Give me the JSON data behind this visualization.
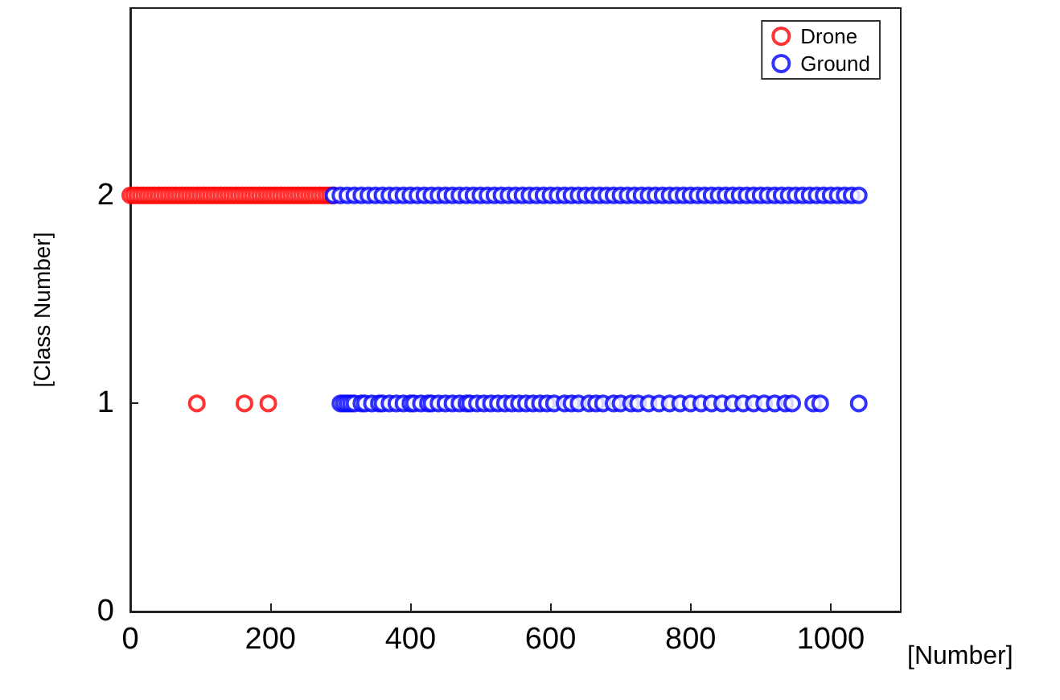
{
  "chart_data": {
    "type": "scatter",
    "xlabel": "[Number]",
    "ylabel": "[Class Number]",
    "xlim": [
      0,
      1100
    ],
    "xticks": [
      0,
      200,
      400,
      600,
      800,
      1000
    ],
    "ylim": [
      0,
      2.9
    ],
    "yticks": [
      0,
      1,
      2
    ],
    "grid": false,
    "legend": "top right",
    "marker": "circle",
    "series": [
      {
        "name": "Drone",
        "color": "#ff0000",
        "x": [
          0,
          5,
          10,
          15,
          20,
          25,
          30,
          35,
          40,
          45,
          50,
          55,
          60,
          65,
          70,
          75,
          80,
          85,
          90,
          95,
          100,
          105,
          110,
          115,
          120,
          125,
          130,
          135,
          140,
          145,
          150,
          155,
          160,
          165,
          170,
          175,
          180,
          185,
          190,
          195,
          200,
          205,
          210,
          215,
          220,
          225,
          230,
          235,
          240,
          245,
          250,
          255,
          260,
          265,
          270,
          275,
          280,
          285,
          290,
          95,
          163,
          197
        ],
        "values": [
          2,
          2,
          2,
          2,
          2,
          2,
          2,
          2,
          2,
          2,
          2,
          2,
          2,
          2,
          2,
          2,
          2,
          2,
          2,
          2,
          2,
          2,
          2,
          2,
          2,
          2,
          2,
          2,
          2,
          2,
          2,
          2,
          2,
          2,
          2,
          2,
          2,
          2,
          2,
          2,
          2,
          2,
          2,
          2,
          2,
          2,
          2,
          2,
          2,
          2,
          2,
          2,
          2,
          2,
          2,
          2,
          2,
          2,
          2,
          1,
          1,
          1
        ]
      },
      {
        "name": "Ground",
        "color": "#0000ff",
        "x": [
          290,
          300,
          310,
          320,
          330,
          340,
          350,
          360,
          370,
          380,
          390,
          400,
          410,
          420,
          430,
          440,
          450,
          460,
          470,
          480,
          490,
          500,
          510,
          520,
          530,
          540,
          550,
          560,
          570,
          580,
          590,
          600,
          610,
          620,
          630,
          640,
          650,
          660,
          670,
          680,
          690,
          700,
          710,
          720,
          730,
          740,
          750,
          760,
          770,
          780,
          790,
          800,
          810,
          820,
          830,
          840,
          850,
          860,
          870,
          880,
          890,
          900,
          910,
          920,
          930,
          940,
          950,
          960,
          970,
          980,
          990,
          1000,
          1010,
          1020,
          1030,
          1040,
          300,
          305,
          310,
          315,
          320,
          330,
          335,
          345,
          355,
          360,
          370,
          380,
          390,
          400,
          405,
          415,
          425,
          430,
          440,
          450,
          460,
          470,
          480,
          485,
          495,
          505,
          515,
          525,
          535,
          545,
          555,
          565,
          575,
          585,
          595,
          605,
          620,
          630,
          640,
          655,
          665,
          675,
          690,
          700,
          715,
          725,
          740,
          755,
          770,
          785,
          800,
          815,
          830,
          845,
          860,
          875,
          890,
          905,
          920,
          935,
          945,
          975,
          985,
          1040
        ],
        "values": [
          2,
          2,
          2,
          2,
          2,
          2,
          2,
          2,
          2,
          2,
          2,
          2,
          2,
          2,
          2,
          2,
          2,
          2,
          2,
          2,
          2,
          2,
          2,
          2,
          2,
          2,
          2,
          2,
          2,
          2,
          2,
          2,
          2,
          2,
          2,
          2,
          2,
          2,
          2,
          2,
          2,
          2,
          2,
          2,
          2,
          2,
          2,
          2,
          2,
          2,
          2,
          2,
          2,
          2,
          2,
          2,
          2,
          2,
          2,
          2,
          2,
          2,
          2,
          2,
          2,
          2,
          2,
          2,
          2,
          2,
          2,
          2,
          2,
          2,
          2,
          2,
          1,
          1,
          1,
          1,
          1,
          1,
          1,
          1,
          1,
          1,
          1,
          1,
          1,
          1,
          1,
          1,
          1,
          1,
          1,
          1,
          1,
          1,
          1,
          1,
          1,
          1,
          1,
          1,
          1,
          1,
          1,
          1,
          1,
          1,
          1,
          1,
          1,
          1,
          1,
          1,
          1,
          1,
          1,
          1,
          1,
          1,
          1,
          1,
          1,
          1,
          1,
          1,
          1,
          1,
          1,
          1,
          1,
          1,
          1,
          1,
          1,
          1,
          1,
          1
        ]
      }
    ]
  }
}
